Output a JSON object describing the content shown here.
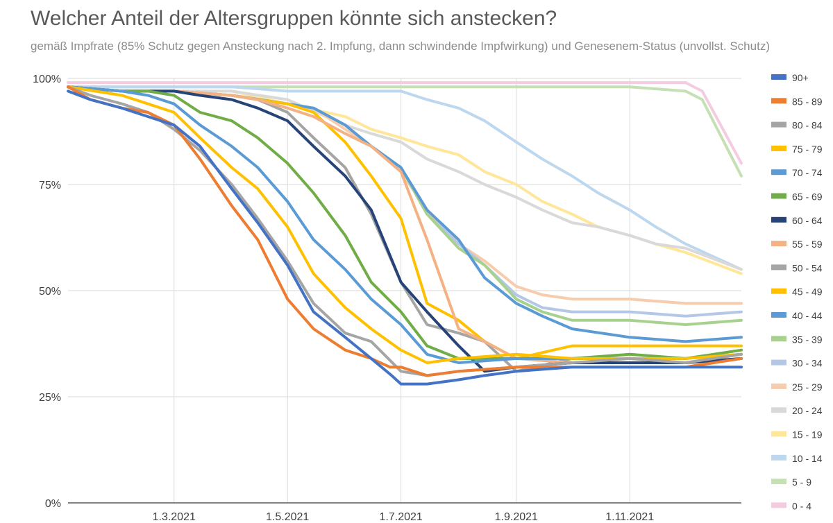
{
  "chart_data": {
    "type": "line",
    "title": "Welcher Anteil der Altersgruppen könnte sich anstecken?",
    "subtitle": "gemäß Impfrate (85% Schutz gegen Ansteckung nach 2. Impfung, dann schwindende Impfwirkung) und Genesenem-Status (unvollst. Schutz)",
    "xlabel": "",
    "ylabel": "",
    "ylim": [
      0,
      100
    ],
    "y_ticks": [
      "0%",
      "25%",
      "50%",
      "75%",
      "100%"
    ],
    "y_tick_values": [
      0,
      25,
      50,
      75,
      100
    ],
    "x_range": [
      "2021-01-03",
      "2021-12-31"
    ],
    "x_ticks": [
      {
        "label": "1.3.2021",
        "date": "2021-03-01"
      },
      {
        "label": "1.5.2021",
        "date": "2021-05-01"
      },
      {
        "label": "1.7.2021",
        "date": "2021-07-01"
      },
      {
        "label": "1.9.2021",
        "date": "2021-09-01"
      },
      {
        "label": "1.11.2021",
        "date": "2021-11-01"
      }
    ],
    "grid": true,
    "legend_position": "right",
    "series": [
      {
        "name": "90+",
        "color": "#4472c4",
        "x": [
          "2021-01-03",
          "2021-01-15",
          "2021-02-01",
          "2021-02-15",
          "2021-03-01",
          "2021-03-15",
          "2021-04-01",
          "2021-04-15",
          "2021-05-01",
          "2021-05-15",
          "2021-06-01",
          "2021-06-15",
          "2021-06-26",
          "2021-07-01",
          "2021-07-15",
          "2021-08-01",
          "2021-08-15",
          "2021-09-01",
          "2021-10-01",
          "2021-11-01",
          "2021-12-01",
          "2021-12-31"
        ],
        "values": [
          97,
          95,
          93,
          91,
          89,
          84,
          74,
          66,
          56,
          45,
          39,
          34,
          30,
          28,
          28,
          29,
          30,
          31,
          32,
          32,
          32,
          32
        ]
      },
      {
        "name": "85 - 89",
        "color": "#ed7d31",
        "x": [
          "2021-01-03",
          "2021-01-15",
          "2021-02-01",
          "2021-02-15",
          "2021-03-01",
          "2021-03-15",
          "2021-04-01",
          "2021-04-15",
          "2021-05-01",
          "2021-05-15",
          "2021-06-01",
          "2021-06-15",
          "2021-06-25",
          "2021-07-01",
          "2021-07-15",
          "2021-08-01",
          "2021-09-01",
          "2021-10-01",
          "2021-11-01",
          "2021-12-01",
          "2021-12-31"
        ],
        "values": [
          98,
          95,
          93,
          92,
          89,
          81,
          70,
          62,
          48,
          41,
          36,
          34,
          32,
          32,
          30,
          31,
          32,
          32,
          32,
          32,
          34
        ]
      },
      {
        "name": "80 - 84",
        "color": "#a5a5a5",
        "x": [
          "2021-01-03",
          "2021-01-15",
          "2021-02-01",
          "2021-02-15",
          "2021-03-01",
          "2021-03-15",
          "2021-04-01",
          "2021-04-15",
          "2021-05-01",
          "2021-05-15",
          "2021-06-01",
          "2021-06-15",
          "2021-07-01",
          "2021-07-15",
          "2021-08-01",
          "2021-09-01",
          "2021-10-01",
          "2021-11-01",
          "2021-12-01",
          "2021-12-31"
        ],
        "values": [
          98,
          96,
          94,
          92,
          88,
          83,
          75,
          67,
          57,
          47,
          40,
          38,
          31,
          30,
          31,
          32,
          33,
          34,
          33,
          35
        ]
      },
      {
        "name": "75 - 79",
        "color": "#ffc000",
        "x": [
          "2021-01-03",
          "2021-02-01",
          "2021-02-15",
          "2021-03-01",
          "2021-03-15",
          "2021-04-01",
          "2021-04-15",
          "2021-05-01",
          "2021-05-15",
          "2021-06-01",
          "2021-06-15",
          "2021-07-01",
          "2021-07-15",
          "2021-08-01",
          "2021-09-01",
          "2021-10-01",
          "2021-11-01",
          "2021-12-01",
          "2021-12-31"
        ],
        "values": [
          98,
          96,
          94,
          92,
          86,
          79,
          74,
          65,
          54,
          46,
          41,
          36,
          33,
          34,
          35,
          34,
          34,
          34,
          35
        ]
      },
      {
        "name": "70 - 74",
        "color": "#5b9bd5",
        "x": [
          "2021-01-03",
          "2021-02-01",
          "2021-02-15",
          "2021-03-01",
          "2021-03-15",
          "2021-04-01",
          "2021-04-15",
          "2021-05-01",
          "2021-05-15",
          "2021-06-01",
          "2021-06-15",
          "2021-07-01",
          "2021-07-15",
          "2021-08-01",
          "2021-09-01",
          "2021-10-01",
          "2021-11-01",
          "2021-12-01",
          "2021-12-31"
        ],
        "values": [
          98,
          97,
          96,
          94,
          89,
          84,
          79,
          71,
          62,
          55,
          48,
          42,
          35,
          33,
          34,
          34,
          34,
          34,
          35
        ]
      },
      {
        "name": "65 - 69",
        "color": "#70ad47",
        "x": [
          "2021-01-03",
          "2021-02-01",
          "2021-02-15",
          "2021-03-01",
          "2021-03-15",
          "2021-04-01",
          "2021-04-15",
          "2021-05-01",
          "2021-05-15",
          "2021-06-01",
          "2021-06-15",
          "2021-07-01",
          "2021-07-15",
          "2021-08-01",
          "2021-09-01",
          "2021-10-01",
          "2021-11-01",
          "2021-12-01",
          "2021-12-31"
        ],
        "values": [
          98,
          97,
          97,
          96,
          92,
          90,
          86,
          80,
          73,
          63,
          52,
          45,
          37,
          34,
          34,
          34,
          35,
          34,
          36
        ]
      },
      {
        "name": "60 - 64",
        "color": "#264478",
        "x": [
          "2021-01-03",
          "2021-02-01",
          "2021-03-01",
          "2021-03-15",
          "2021-04-01",
          "2021-04-15",
          "2021-05-01",
          "2021-05-15",
          "2021-06-01",
          "2021-06-15",
          "2021-07-01",
          "2021-07-15",
          "2021-08-01",
          "2021-08-15",
          "2021-09-01",
          "2021-10-01",
          "2021-11-01",
          "2021-12-01",
          "2021-12-31"
        ],
        "values": [
          98,
          97,
          97,
          96,
          95,
          93,
          90,
          84,
          77,
          69,
          52,
          45,
          37,
          31,
          32,
          33,
          33,
          33,
          34
        ]
      },
      {
        "name": "55 - 59",
        "color": "#f4b183",
        "x": [
          "2021-01-03",
          "2021-02-01",
          "2021-03-01",
          "2021-04-01",
          "2021-04-15",
          "2021-05-01",
          "2021-05-15",
          "2021-06-01",
          "2021-06-15",
          "2021-07-01",
          "2021-07-15",
          "2021-08-01",
          "2021-08-15",
          "2021-09-01",
          "2021-10-01",
          "2021-11-01",
          "2021-12-01",
          "2021-12-31"
        ],
        "values": [
          98,
          97,
          97,
          96,
          95,
          93,
          91,
          87,
          84,
          78,
          62,
          41,
          38,
          34,
          33,
          33,
          33,
          34
        ]
      },
      {
        "name": "50 - 54",
        "color": "#a5a5a5",
        "x": [
          "2021-01-03",
          "2021-02-01",
          "2021-03-01",
          "2021-04-01",
          "2021-04-15",
          "2021-05-01",
          "2021-05-15",
          "2021-06-01",
          "2021-06-15",
          "2021-07-01",
          "2021-07-15",
          "2021-08-01",
          "2021-08-15",
          "2021-09-01",
          "2021-10-01",
          "2021-11-01",
          "2021-12-01",
          "2021-12-31"
        ],
        "values": [
          98,
          97,
          97,
          96,
          95,
          92,
          86,
          79,
          68,
          52,
          42,
          40,
          38,
          31,
          34,
          34,
          33,
          35
        ]
      },
      {
        "name": "45 - 49",
        "color": "#ffc000",
        "x": [
          "2021-01-03",
          "2021-02-01",
          "2021-03-01",
          "2021-04-01",
          "2021-04-15",
          "2021-05-01",
          "2021-05-15",
          "2021-06-01",
          "2021-06-15",
          "2021-07-01",
          "2021-07-15",
          "2021-08-01",
          "2021-08-15",
          "2021-09-01",
          "2021-10-01",
          "2021-11-01",
          "2021-12-01",
          "2021-12-31"
        ],
        "values": [
          98,
          97,
          97,
          96,
          95,
          94,
          92,
          85,
          77,
          67,
          47,
          43,
          38,
          34,
          37,
          37,
          37,
          37
        ]
      },
      {
        "name": "40 - 44",
        "color": "#5b9bd5",
        "x": [
          "2021-01-03",
          "2021-02-01",
          "2021-03-01",
          "2021-04-01",
          "2021-05-01",
          "2021-05-15",
          "2021-06-01",
          "2021-06-15",
          "2021-07-01",
          "2021-07-15",
          "2021-08-01",
          "2021-08-15",
          "2021-09-01",
          "2021-09-15",
          "2021-10-01",
          "2021-11-01",
          "2021-12-01",
          "2021-12-31"
        ],
        "values": [
          98,
          97,
          97,
          96,
          94,
          93,
          89,
          84,
          79,
          69,
          62,
          53,
          47,
          44,
          41,
          39,
          38,
          39
        ]
      },
      {
        "name": "35 - 39",
        "color": "#a9d18e",
        "x": [
          "2021-01-03",
          "2021-02-01",
          "2021-03-01",
          "2021-04-01",
          "2021-05-01",
          "2021-05-15",
          "2021-06-01",
          "2021-06-15",
          "2021-07-01",
          "2021-07-15",
          "2021-08-01",
          "2021-08-15",
          "2021-09-01",
          "2021-09-15",
          "2021-10-01",
          "2021-11-01",
          "2021-12-01",
          "2021-12-31"
        ],
        "values": [
          98,
          97,
          97,
          96,
          94,
          93,
          89,
          84,
          79,
          68,
          60,
          56,
          48,
          45,
          43,
          43,
          42,
          43
        ]
      },
      {
        "name": "30 - 34",
        "color": "#b4c7e7",
        "x": [
          "2021-01-03",
          "2021-02-01",
          "2021-03-01",
          "2021-04-01",
          "2021-05-01",
          "2021-05-15",
          "2021-06-01",
          "2021-06-15",
          "2021-07-01",
          "2021-07-15",
          "2021-08-01",
          "2021-08-15",
          "2021-09-01",
          "2021-09-15",
          "2021-10-01",
          "2021-11-01",
          "2021-12-01",
          "2021-12-31"
        ],
        "values": [
          98,
          97,
          97,
          96,
          94,
          93,
          89,
          84,
          79,
          68,
          61,
          56,
          49,
          46,
          45,
          45,
          44,
          45
        ]
      },
      {
        "name": "25 - 29",
        "color": "#f8cbad",
        "x": [
          "2021-01-03",
          "2021-02-01",
          "2021-03-01",
          "2021-04-01",
          "2021-05-01",
          "2021-05-15",
          "2021-06-01",
          "2021-06-15",
          "2021-07-01",
          "2021-07-15",
          "2021-08-01",
          "2021-08-15",
          "2021-09-01",
          "2021-09-15",
          "2021-10-01",
          "2021-11-01",
          "2021-12-01",
          "2021-12-31"
        ],
        "values": [
          98,
          97,
          97,
          96,
          94,
          93,
          88,
          84,
          78,
          69,
          61,
          57,
          51,
          49,
          48,
          48,
          47,
          47
        ]
      },
      {
        "name": "20 - 24",
        "color": "#d9d9d9",
        "x": [
          "2021-01-03",
          "2021-02-01",
          "2021-03-01",
          "2021-04-01",
          "2021-05-01",
          "2021-06-01",
          "2021-06-15",
          "2021-07-01",
          "2021-07-15",
          "2021-08-01",
          "2021-08-15",
          "2021-09-01",
          "2021-09-15",
          "2021-10-01",
          "2021-10-15",
          "2021-11-01",
          "2021-11-15",
          "2021-12-01",
          "2021-12-31"
        ],
        "values": [
          98,
          97,
          97,
          97,
          95,
          89,
          87,
          85,
          81,
          78,
          75,
          72,
          69,
          66,
          65,
          63,
          61,
          60,
          55
        ]
      },
      {
        "name": "15 - 19",
        "color": "#ffe699",
        "x": [
          "2021-01-03",
          "2021-02-01",
          "2021-03-01",
          "2021-04-01",
          "2021-05-01",
          "2021-06-01",
          "2021-06-15",
          "2021-07-01",
          "2021-07-15",
          "2021-08-01",
          "2021-08-15",
          "2021-09-01",
          "2021-09-15",
          "2021-10-01",
          "2021-10-15",
          "2021-11-01",
          "2021-11-15",
          "2021-12-01",
          "2021-12-31"
        ],
        "values": [
          98,
          97,
          97,
          97,
          94,
          91,
          88,
          86,
          84,
          82,
          78,
          75,
          71,
          68,
          65,
          63,
          61,
          59,
          54
        ]
      },
      {
        "name": "10 - 14",
        "color": "#bdd7ee",
        "x": [
          "2021-01-03",
          "2021-02-01",
          "2021-03-01",
          "2021-04-01",
          "2021-05-01",
          "2021-06-01",
          "2021-07-01",
          "2021-07-15",
          "2021-08-01",
          "2021-08-15",
          "2021-09-01",
          "2021-09-15",
          "2021-10-01",
          "2021-10-15",
          "2021-11-01",
          "2021-11-15",
          "2021-12-01",
          "2021-12-31"
        ],
        "values": [
          98,
          98,
          98,
          98,
          97,
          97,
          97,
          95,
          93,
          90,
          85,
          81,
          77,
          73,
          69,
          65,
          61,
          55
        ]
      },
      {
        "name": "5 - 9",
        "color": "#c5e0b4",
        "x": [
          "2021-01-03",
          "2021-03-01",
          "2021-05-01",
          "2021-07-01",
          "2021-09-01",
          "2021-11-01",
          "2021-12-01",
          "2021-12-10",
          "2021-12-31"
        ],
        "values": [
          98,
          98,
          98,
          98,
          98,
          98,
          97,
          95,
          77
        ]
      },
      {
        "name": "0 - 4",
        "color": "#f4cce0",
        "x": [
          "2021-01-03",
          "2021-03-01",
          "2021-05-01",
          "2021-07-01",
          "2021-09-01",
          "2021-11-01",
          "2021-12-01",
          "2021-12-10",
          "2021-12-31"
        ],
        "values": [
          99,
          99,
          99,
          99,
          99,
          99,
          99,
          97,
          80
        ]
      }
    ]
  }
}
